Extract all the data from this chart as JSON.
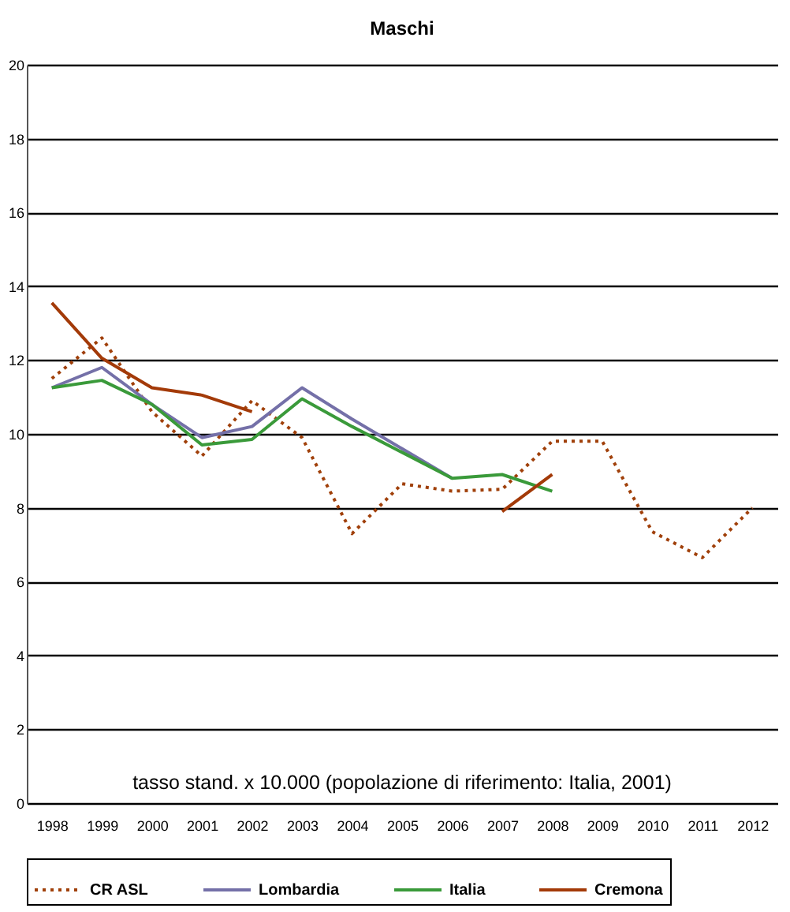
{
  "chart_data": {
    "type": "line",
    "title": "Maschi",
    "categories": [
      "1998",
      "1999",
      "2000",
      "2001",
      "2002",
      "2003",
      "2004",
      "2005",
      "2006",
      "2007",
      "2008",
      "2009",
      "2010",
      "2011",
      "2012"
    ],
    "series": [
      {
        "name": "CR ASL",
        "color": "#a0400a",
        "line_style": "dotted",
        "values": [
          11.5,
          12.6,
          10.6,
          9.4,
          10.9,
          9.9,
          7.3,
          8.65,
          8.45,
          8.5,
          9.8,
          9.8,
          7.35,
          6.65,
          8.0
        ]
      },
      {
        "name": "Lombardia",
        "color": "#7470a8",
        "values": [
          11.25,
          11.8,
          10.8,
          9.9,
          10.2,
          11.25,
          10.4,
          9.6,
          8.8,
          null,
          null,
          null,
          null,
          null,
          null
        ]
      },
      {
        "name": "Italia",
        "color": "#3a9a3a",
        "values": [
          11.25,
          11.45,
          10.8,
          9.7,
          9.85,
          10.95,
          10.2,
          9.5,
          8.8,
          8.9,
          8.45,
          null,
          null,
          null,
          null
        ]
      },
      {
        "name": "Cremona",
        "color": "#a33a08",
        "values": [
          13.55,
          12.05,
          11.25,
          11.05,
          10.6,
          null,
          null,
          null,
          null,
          7.9,
          8.9,
          null,
          null,
          null,
          null
        ]
      }
    ],
    "ylim": [
      0,
      20
    ],
    "yticks": [
      0,
      2,
      4,
      6,
      8,
      10,
      12,
      14,
      16,
      18,
      20
    ],
    "grid": "y",
    "legend": "bottom",
    "annotations": [
      "tasso stand. x 10.000 (popolazione di riferimento: Italia, 2001)"
    ]
  }
}
